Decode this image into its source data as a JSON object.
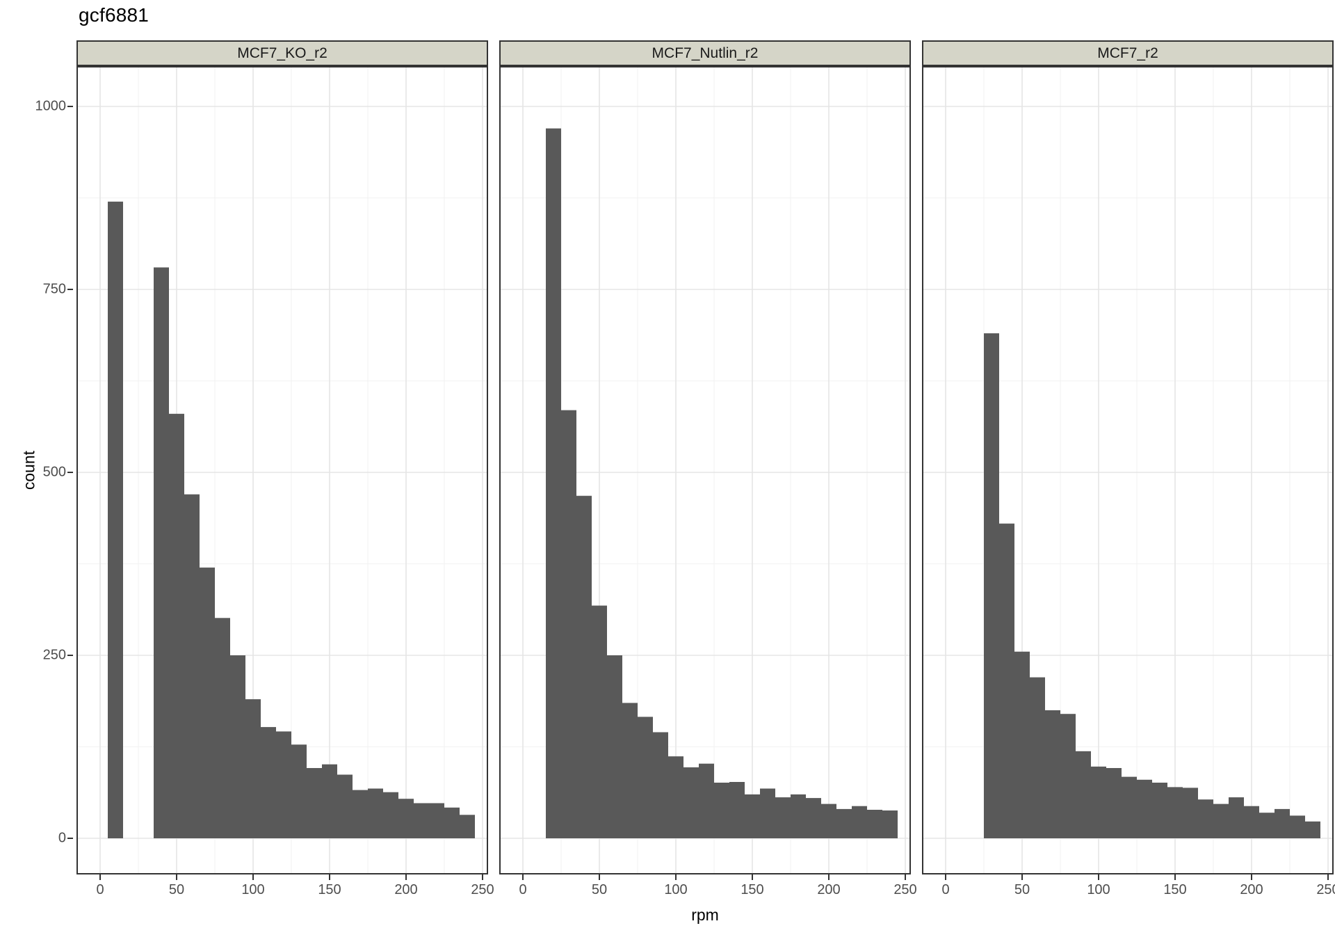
{
  "title": "gcf6881",
  "y_axis": {
    "label": "count",
    "ticks": [
      0,
      250,
      500,
      750,
      1000
    ]
  },
  "x_axis": {
    "label": "rpm",
    "ticks": [
      0,
      50,
      100,
      150,
      200,
      250
    ]
  },
  "style": {
    "bar_fill": "#595959",
    "strip_background": "#d5d5c8",
    "panel_border": "#333333",
    "grid_major": "#e5e5e5",
    "grid_minor": "#f2f2f2",
    "tick_label_color": "#4d4d4d",
    "title_color": "#000000"
  },
  "chart_data": {
    "type": "bar",
    "subtype": "faceted-histogram",
    "title": "gcf6881",
    "xlabel": "rpm",
    "ylabel": "count",
    "binwidth": 10,
    "xlim": [
      -15,
      253
    ],
    "ylim": [
      -50,
      1055
    ],
    "x_ticks": [
      0,
      50,
      100,
      150,
      200,
      250
    ],
    "y_ticks": [
      0,
      250,
      500,
      750,
      1000
    ],
    "x_minor": [
      25,
      75,
      125,
      175,
      225
    ],
    "y_minor": [
      125,
      375,
      625,
      875
    ],
    "grid": true,
    "legend": "none",
    "panels": [
      {
        "label": "MCF7_KO_r2",
        "bins": [
          {
            "x0": 5,
            "count": 870
          },
          {
            "x0": 35,
            "count": 780
          },
          {
            "x0": 45,
            "count": 580
          },
          {
            "x0": 55,
            "count": 470
          },
          {
            "x0": 65,
            "count": 370
          },
          {
            "x0": 75,
            "count": 301
          },
          {
            "x0": 85,
            "count": 250
          },
          {
            "x0": 95,
            "count": 190
          },
          {
            "x0": 105,
            "count": 152
          },
          {
            "x0": 115,
            "count": 146
          },
          {
            "x0": 125,
            "count": 128
          },
          {
            "x0": 135,
            "count": 96
          },
          {
            "x0": 145,
            "count": 101
          },
          {
            "x0": 155,
            "count": 87
          },
          {
            "x0": 165,
            "count": 66
          },
          {
            "x0": 175,
            "count": 68
          },
          {
            "x0": 185,
            "count": 63
          },
          {
            "x0": 195,
            "count": 54
          },
          {
            "x0": 205,
            "count": 48
          },
          {
            "x0": 215,
            "count": 48
          },
          {
            "x0": 225,
            "count": 42
          },
          {
            "x0": 235,
            "count": 32
          }
        ]
      },
      {
        "label": "MCF7_Nutlin_r2",
        "bins": [
          {
            "x0": 15,
            "count": 970
          },
          {
            "x0": 25,
            "count": 585
          },
          {
            "x0": 35,
            "count": 468
          },
          {
            "x0": 45,
            "count": 318
          },
          {
            "x0": 55,
            "count": 250
          },
          {
            "x0": 65,
            "count": 185
          },
          {
            "x0": 75,
            "count": 166
          },
          {
            "x0": 85,
            "count": 145
          },
          {
            "x0": 95,
            "count": 112
          },
          {
            "x0": 105,
            "count": 97
          },
          {
            "x0": 115,
            "count": 102
          },
          {
            "x0": 125,
            "count": 76
          },
          {
            "x0": 135,
            "count": 77
          },
          {
            "x0": 145,
            "count": 60
          },
          {
            "x0": 155,
            "count": 68
          },
          {
            "x0": 165,
            "count": 56
          },
          {
            "x0": 175,
            "count": 60
          },
          {
            "x0": 185,
            "count": 55
          },
          {
            "x0": 195,
            "count": 47
          },
          {
            "x0": 205,
            "count": 40
          },
          {
            "x0": 215,
            "count": 44
          },
          {
            "x0": 225,
            "count": 39
          },
          {
            "x0": 235,
            "count": 38
          }
        ]
      },
      {
        "label": "MCF7_r2",
        "bins": [
          {
            "x0": 25,
            "count": 690
          },
          {
            "x0": 35,
            "count": 430
          },
          {
            "x0": 45,
            "count": 255
          },
          {
            "x0": 55,
            "count": 220
          },
          {
            "x0": 65,
            "count": 175
          },
          {
            "x0": 75,
            "count": 170
          },
          {
            "x0": 85,
            "count": 119
          },
          {
            "x0": 95,
            "count": 98
          },
          {
            "x0": 105,
            "count": 96
          },
          {
            "x0": 115,
            "count": 84
          },
          {
            "x0": 125,
            "count": 80
          },
          {
            "x0": 135,
            "count": 76
          },
          {
            "x0": 145,
            "count": 70
          },
          {
            "x0": 155,
            "count": 69
          },
          {
            "x0": 165,
            "count": 53
          },
          {
            "x0": 175,
            "count": 47
          },
          {
            "x0": 185,
            "count": 56
          },
          {
            "x0": 195,
            "count": 44
          },
          {
            "x0": 205,
            "count": 35
          },
          {
            "x0": 215,
            "count": 40
          },
          {
            "x0": 225,
            "count": 31
          },
          {
            "x0": 235,
            "count": 23
          }
        ]
      }
    ]
  }
}
